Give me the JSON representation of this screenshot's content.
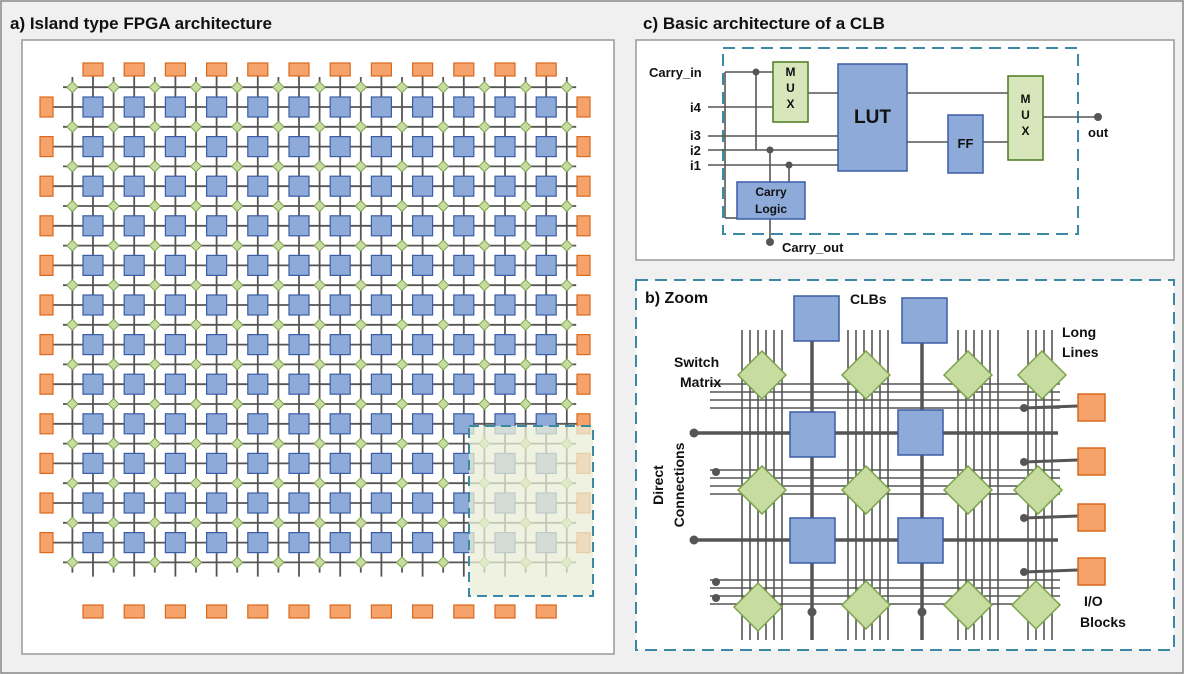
{
  "panel_a": {
    "title": "a) Island type FPGA architecture",
    "grid_rows": 12,
    "grid_cols": 12
  },
  "panel_c": {
    "title": "c) Basic architecture of a CLB",
    "inputs": [
      "Carry_in",
      "i4",
      "i3",
      "i2",
      "i1"
    ],
    "mux1": "M\nU\nX",
    "lut": "LUT",
    "ff": "FF",
    "mux2": "M\nU\nX",
    "carry_logic": [
      "Carry",
      "Logic"
    ],
    "out": "out",
    "carry_out": "Carry_out"
  },
  "panel_b": {
    "title": "b) Zoom",
    "clbs_label": "CLBs",
    "long_lines_label": [
      "Long",
      "Lines"
    ],
    "switch_matrix_label": [
      "Switch",
      "Matrix"
    ],
    "direct_connections_label": [
      "Direct",
      "Connections"
    ],
    "io_blocks_label": [
      "I/O",
      "Blocks"
    ]
  },
  "colors": {
    "clb_fill": "#8eaad8",
    "clb_stroke": "#3b5ca6",
    "io_fill": "#f5a26b",
    "io_stroke": "#d96a1e",
    "switch_fill": "#c6dca0",
    "switch_stroke": "#7da34a",
    "mux_fill": "#d8e6bc",
    "wire": "#555555",
    "dashed": "#3a8aa5"
  }
}
